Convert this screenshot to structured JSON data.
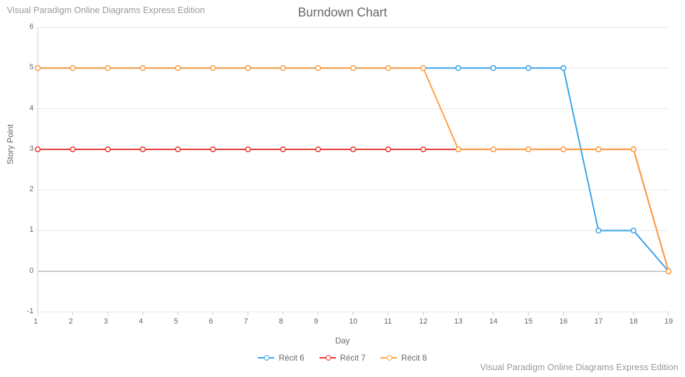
{
  "watermark": "Visual Paradigm Online Diagrams Express Edition",
  "chart": {
    "type": "line",
    "title": "Burndown Chart",
    "title_fontsize": 18,
    "title_color": "#666666",
    "xlabel": "Day",
    "ylabel": "Story Point",
    "label_fontsize": 12,
    "label_color": "#666666",
    "background_color": "#ffffff",
    "grid_color": "#e6e6e6",
    "axis_color": "#cccccc",
    "zero_line_color": "#999999",
    "tick_label_color": "#666666",
    "tick_label_fontsize": 11,
    "xlim": [
      1,
      19
    ],
    "ylim": [
      -1,
      6
    ],
    "xtick_step": 1,
    "ytick_step": 1,
    "x_values": [
      1,
      2,
      3,
      4,
      5,
      6,
      7,
      8,
      9,
      10,
      11,
      12,
      13,
      14,
      15,
      16,
      17,
      18,
      19
    ],
    "series": [
      {
        "name": "Récit 6",
        "color": "#36a2eb",
        "marker": "circle",
        "marker_fill": "#ffffff",
        "line_width": 2,
        "values": [
          5,
          5,
          5,
          5,
          5,
          5,
          5,
          5,
          5,
          5,
          5,
          5,
          5,
          5,
          5,
          5,
          1,
          1,
          0
        ]
      },
      {
        "name": "Récit 7",
        "color": "#e6332a",
        "marker": "circle",
        "marker_fill": "#ffffff",
        "line_width": 2,
        "values": [
          3,
          3,
          3,
          3,
          3,
          3,
          3,
          3,
          3,
          3,
          3,
          3,
          3,
          3,
          3,
          3,
          3,
          3,
          0
        ]
      },
      {
        "name": "Récit 8",
        "color": "#ff9f40",
        "marker": "circle",
        "marker_fill": "#ffffff",
        "line_width": 2,
        "values": [
          5,
          5,
          5,
          5,
          5,
          5,
          5,
          5,
          5,
          5,
          5,
          5,
          3,
          3,
          3,
          3,
          3,
          3,
          0
        ]
      }
    ],
    "legend_position": "bottom"
  }
}
